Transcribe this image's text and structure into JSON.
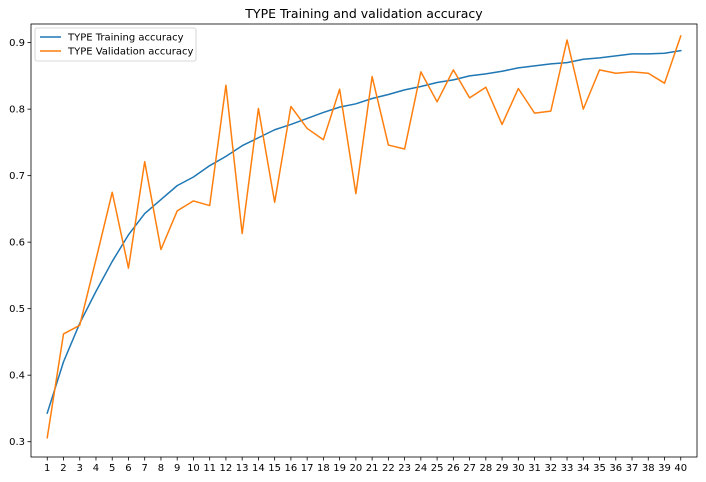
{
  "chart_data": {
    "type": "line",
    "title": "TYPE Training and validation accuracy",
    "xlabel": "",
    "ylabel": "",
    "x": [
      1,
      2,
      3,
      4,
      5,
      6,
      7,
      8,
      9,
      10,
      11,
      12,
      13,
      14,
      15,
      16,
      17,
      18,
      19,
      20,
      21,
      22,
      23,
      24,
      25,
      26,
      27,
      28,
      29,
      30,
      31,
      32,
      33,
      34,
      35,
      36,
      37,
      38,
      39,
      40
    ],
    "xlim": [
      0,
      41
    ],
    "ylim": [
      0.277,
      0.928
    ],
    "yticks": [
      0.3,
      0.4,
      0.5,
      0.6,
      0.7,
      0.8,
      0.9
    ],
    "ytick_labels": [
      "0.3",
      "0.4",
      "0.5",
      "0.6",
      "0.7",
      "0.8",
      "0.9"
    ],
    "grid": false,
    "legend_position": "top-left",
    "series": [
      {
        "name": "TYPE Training accuracy",
        "color": "#1f77b4",
        "values": [
          0.343,
          0.42,
          0.478,
          0.526,
          0.571,
          0.611,
          0.643,
          0.664,
          0.685,
          0.698,
          0.715,
          0.729,
          0.745,
          0.757,
          0.769,
          0.777,
          0.786,
          0.795,
          0.803,
          0.808,
          0.816,
          0.822,
          0.829,
          0.834,
          0.84,
          0.844,
          0.85,
          0.853,
          0.857,
          0.862,
          0.865,
          0.868,
          0.87,
          0.875,
          0.877,
          0.88,
          0.883,
          0.883,
          0.884,
          0.888
        ]
      },
      {
        "name": "TYPE Validation accuracy",
        "color": "#ff7f0e",
        "values": [
          0.306,
          0.462,
          0.475,
          0.574,
          0.675,
          0.561,
          0.721,
          0.589,
          0.647,
          0.662,
          0.655,
          0.836,
          0.613,
          0.801,
          0.66,
          0.804,
          0.771,
          0.754,
          0.83,
          0.673,
          0.849,
          0.746,
          0.74,
          0.856,
          0.811,
          0.859,
          0.817,
          0.833,
          0.777,
          0.831,
          0.794,
          0.797,
          0.904,
          0.8,
          0.859,
          0.854,
          0.856,
          0.854,
          0.839,
          0.91
        ]
      }
    ]
  }
}
